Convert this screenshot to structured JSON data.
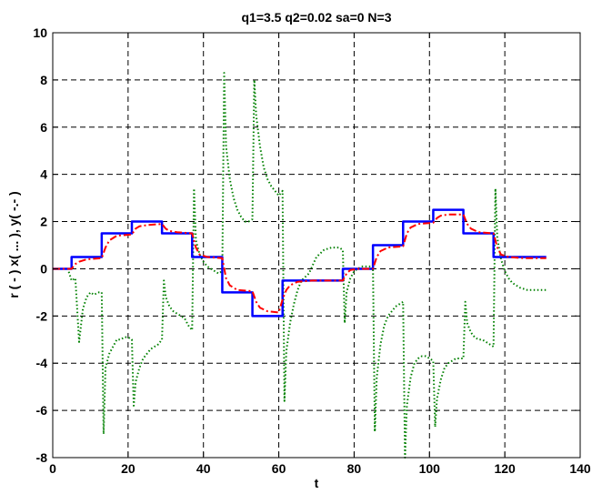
{
  "chart_data": {
    "type": "line",
    "title": "q1=3.5  q2=0.02  sa=0  N=3",
    "xlabel": "t",
    "ylabel": "r ( - )  x( ... ),  y( -.- )",
    "xlim": [
      0,
      140
    ],
    "ylim": [
      -8,
      10
    ],
    "xticks": [
      0,
      20,
      40,
      60,
      80,
      100,
      120,
      140
    ],
    "yticks": [
      -8,
      -6,
      -4,
      -2,
      0,
      2,
      4,
      6,
      8,
      10
    ],
    "xtick_labels": [
      "0",
      "20",
      "40",
      "60",
      "80",
      "100",
      "120",
      "140"
    ],
    "ytick_labels": [
      "-8",
      "-6",
      "-4",
      "-2",
      "0",
      "2",
      "4",
      "6",
      "8",
      "10"
    ],
    "grid": true,
    "series": [
      {
        "style": "solid",
        "color": "#0000ff",
        "x": [
          0,
          5,
          5,
          13,
          13,
          21,
          21,
          29,
          29,
          37,
          37,
          45,
          45,
          53,
          53,
          61,
          61,
          69,
          69,
          77,
          77,
          85,
          85,
          93,
          93,
          101,
          101,
          109,
          109,
          117,
          117,
          125,
          125,
          131
        ],
        "y": [
          0,
          0,
          0.5,
          0.5,
          1.5,
          1.5,
          2,
          2,
          1.5,
          1.5,
          0.5,
          0.5,
          -1,
          -1,
          -2,
          -2,
          -0.5,
          -0.5,
          -0.5,
          -0.5,
          0,
          0,
          1,
          1,
          2,
          2,
          2.5,
          2.5,
          1.5,
          1.5,
          0.5,
          0.5,
          0.5,
          0.5
        ]
      },
      {
        "style": "dashdot",
        "color": "#ff0000",
        "x": [
          0,
          5,
          6,
          7,
          9,
          13,
          14,
          15,
          17,
          21,
          22,
          23,
          25,
          29,
          30,
          31,
          33,
          37,
          38,
          39,
          41,
          45,
          46,
          47,
          49,
          53,
          54,
          55,
          57,
          60,
          61,
          62,
          63,
          65,
          69,
          77,
          78,
          79,
          81,
          85,
          86,
          87,
          89,
          93,
          94,
          95,
          97,
          101,
          102,
          103,
          105,
          109,
          110,
          111,
          113,
          117,
          118,
          119,
          121,
          125,
          131
        ],
        "y": [
          0,
          0,
          0.2,
          0.3,
          0.4,
          0.45,
          0.9,
          1.2,
          1.4,
          1.45,
          1.7,
          1.8,
          1.85,
          1.9,
          1.7,
          1.6,
          1.55,
          1.5,
          0.9,
          0.6,
          0.5,
          0.45,
          -0.4,
          -0.7,
          -0.9,
          -0.95,
          -1.4,
          -1.65,
          -1.8,
          -1.85,
          -1.3,
          -0.9,
          -0.7,
          -0.55,
          -0.5,
          -0.5,
          -0.2,
          -0.05,
          0,
          0,
          0.5,
          0.75,
          0.9,
          0.95,
          1.5,
          1.75,
          1.9,
          1.95,
          2.15,
          2.25,
          2.3,
          2.3,
          1.9,
          1.7,
          1.55,
          1.5,
          0.9,
          0.6,
          0.5,
          0.45,
          0.45
        ]
      },
      {
        "style": "dotted",
        "color": "#008000",
        "x": [
          0,
          4,
          5,
          6,
          7,
          8,
          9,
          10,
          11,
          12,
          13,
          13.5,
          14,
          15,
          16,
          17,
          18,
          19,
          20,
          21,
          21.5,
          22,
          23,
          24,
          25,
          26,
          27,
          28,
          29,
          29.5,
          30,
          31,
          32,
          33,
          34,
          35,
          36,
          37,
          37.5,
          38,
          39,
          40,
          41,
          42,
          43,
          44,
          45,
          45.5,
          46,
          47,
          48,
          49,
          50,
          51,
          52,
          53,
          53.5,
          54,
          55,
          56,
          57,
          58,
          59,
          60,
          61,
          61.5,
          62,
          63,
          64,
          65,
          66,
          68,
          70,
          72,
          74,
          76,
          77,
          77.5,
          78,
          79,
          80,
          81,
          82,
          83,
          84,
          85,
          85.5,
          86,
          87,
          88,
          89,
          90,
          91,
          92,
          93,
          93.5,
          94,
          95,
          96,
          97,
          98,
          99,
          100,
          101,
          101.5,
          102,
          103,
          104,
          105,
          106,
          107,
          108,
          109,
          109.5,
          110,
          111,
          112,
          113,
          114,
          115,
          116,
          117,
          117.5,
          118,
          119,
          120,
          121,
          122,
          124,
          126,
          128,
          131
        ],
        "y": [
          0,
          0,
          -0.5,
          -0.4,
          -3.1,
          -1.7,
          -1.2,
          -1.0,
          -1.1,
          -1.0,
          -1.0,
          -7.0,
          -4.2,
          -3.6,
          -3.3,
          -3.0,
          -3.0,
          -2.9,
          -2.9,
          -3.0,
          -5.8,
          -4.8,
          -4.2,
          -3.8,
          -3.6,
          -3.4,
          -3.3,
          -3.2,
          -3.0,
          -0.5,
          -1.2,
          -1.6,
          -1.8,
          -1.9,
          -2.0,
          -2.1,
          -2.4,
          -2.6,
          3.4,
          1.2,
          0.6,
          0.3,
          0.1,
          0.0,
          -0.1,
          -0.2,
          -0.1,
          8.3,
          5.2,
          3.8,
          3.0,
          2.5,
          2.2,
          2.0,
          2.0,
          2.1,
          8.0,
          6.5,
          5.2,
          4.3,
          3.8,
          3.5,
          3.3,
          3.1,
          3.3,
          -5.6,
          -3.5,
          -2.3,
          -1.5,
          -0.9,
          -0.5,
          -0.2,
          0.5,
          0.8,
          0.9,
          0.9,
          0.8,
          -2.3,
          -1.0,
          -0.4,
          -0.1,
          0.0,
          0.1,
          0.1,
          0.1,
          0.1,
          -6.9,
          -4.6,
          -3.2,
          -2.4,
          -2.0,
          -1.8,
          -1.6,
          -1.5,
          -1.4,
          -8.0,
          -5.8,
          -4.6,
          -4.0,
          -3.8,
          -3.7,
          -3.7,
          -3.8,
          -3.9,
          -6.7,
          -5.5,
          -4.7,
          -4.2,
          -4.0,
          -3.9,
          -3.8,
          -3.8,
          -3.8,
          -1.4,
          -2.3,
          -2.7,
          -2.9,
          -3.0,
          -3.0,
          -3.1,
          -3.2,
          -3.3,
          3.4,
          1.3,
          0.4,
          -0.1,
          -0.4,
          -0.6,
          -0.8,
          -0.9,
          -0.9,
          -0.9
        ]
      }
    ]
  }
}
